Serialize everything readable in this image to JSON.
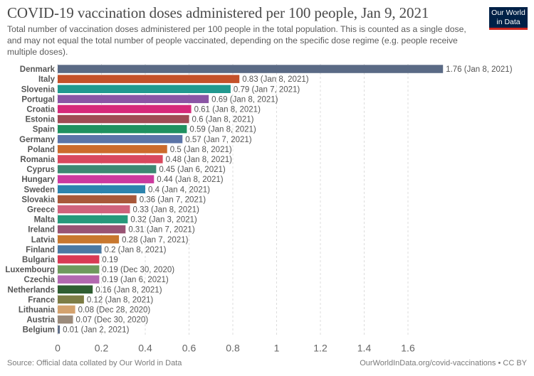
{
  "header": {
    "title": "COVID-19 vaccination doses administered per 100 people, Jan 9, 2021",
    "subtitle": "Total number of vaccination doses administered per 100 people in the total population. This is counted as a single dose, and may not equal the total number of people vaccinated, depending on the specific dose regime (e.g. people receive multiple doses).",
    "logo_line1": "Our World",
    "logo_line2": "in Data"
  },
  "footer": {
    "source": "Source: Official data collated by Our World in Data",
    "url": "OurWorldInData.org/covid-vaccinations • CC BY"
  },
  "chart_data": {
    "type": "bar",
    "orientation": "horizontal",
    "title": "COVID-19 vaccination doses administered per 100 people, Jan 9, 2021",
    "xlabel": "",
    "ylabel": "",
    "xlim": [
      0,
      1.76
    ],
    "xticks": [
      0,
      0.2,
      0.4,
      0.6,
      0.8,
      1,
      1.2,
      1.4,
      1.6
    ],
    "xtick_labels": [
      "0",
      "0.2",
      "0.4",
      "0.6",
      "0.8",
      "1",
      "1.2",
      "1.4",
      "1.6"
    ],
    "grid": "vertical-dashed",
    "categories": [
      "Denmark",
      "Italy",
      "Slovenia",
      "Portugal",
      "Croatia",
      "Estonia",
      "Spain",
      "Germany",
      "Poland",
      "Romania",
      "Cyprus",
      "Hungary",
      "Sweden",
      "Slovakia",
      "Greece",
      "Malta",
      "Ireland",
      "Latvia",
      "Finland",
      "Bulgaria",
      "Luxembourg",
      "Czechia",
      "Netherlands",
      "France",
      "Lithuania",
      "Austria",
      "Belgium"
    ],
    "values": [
      1.76,
      0.83,
      0.79,
      0.69,
      0.61,
      0.6,
      0.59,
      0.57,
      0.5,
      0.48,
      0.45,
      0.44,
      0.4,
      0.36,
      0.33,
      0.32,
      0.31,
      0.28,
      0.2,
      0.19,
      0.19,
      0.19,
      0.16,
      0.12,
      0.08,
      0.07,
      0.01
    ],
    "data_labels": [
      "1.76 (Jan 8, 2021)",
      "0.83 (Jan 8, 2021)",
      "0.79 (Jan 7, 2021)",
      "0.69 (Jan 8, 2021)",
      "0.61 (Jan 8, 2021)",
      "0.6 (Jan 8, 2021)",
      "0.59 (Jan 8, 2021)",
      "0.57 (Jan 7, 2021)",
      "0.5 (Jan 8, 2021)",
      "0.48 (Jan 8, 2021)",
      "0.45 (Jan 6, 2021)",
      "0.44 (Jan 8, 2021)",
      "0.4 (Jan 4, 2021)",
      "0.36 (Jan 7, 2021)",
      "0.33 (Jan 8, 2021)",
      "0.32 (Jan 3, 2021)",
      "0.31 (Jan 7, 2021)",
      "0.28 (Jan 7, 2021)",
      "0.2 (Jan 8, 2021)",
      "0.19",
      "0.19 (Dec 30, 2020)",
      "0.19 (Jan 6, 2021)",
      "0.16 (Jan 8, 2021)",
      "0.12 (Jan 8, 2021)",
      "0.08 (Dec 28, 2020)",
      "0.07 (Dec 30, 2020)",
      "0.01 (Jan 2, 2021)"
    ],
    "colors": [
      "#5a6a85",
      "#c4512a",
      "#21998f",
      "#8a55a5",
      "#d6297a",
      "#a04b55",
      "#1f9160",
      "#5b74a8",
      "#cc6b2c",
      "#d9485e",
      "#3d8873",
      "#cc3a9e",
      "#2d84ae",
      "#a8583a",
      "#d0627c",
      "#26997b",
      "#985374",
      "#c8772e",
      "#4b79a3",
      "#d93a54",
      "#6e9a5d",
      "#b268b0",
      "#2f5e32",
      "#7d7d46",
      "#d4a26e",
      "#9b8b7c",
      "#62708a"
    ]
  }
}
